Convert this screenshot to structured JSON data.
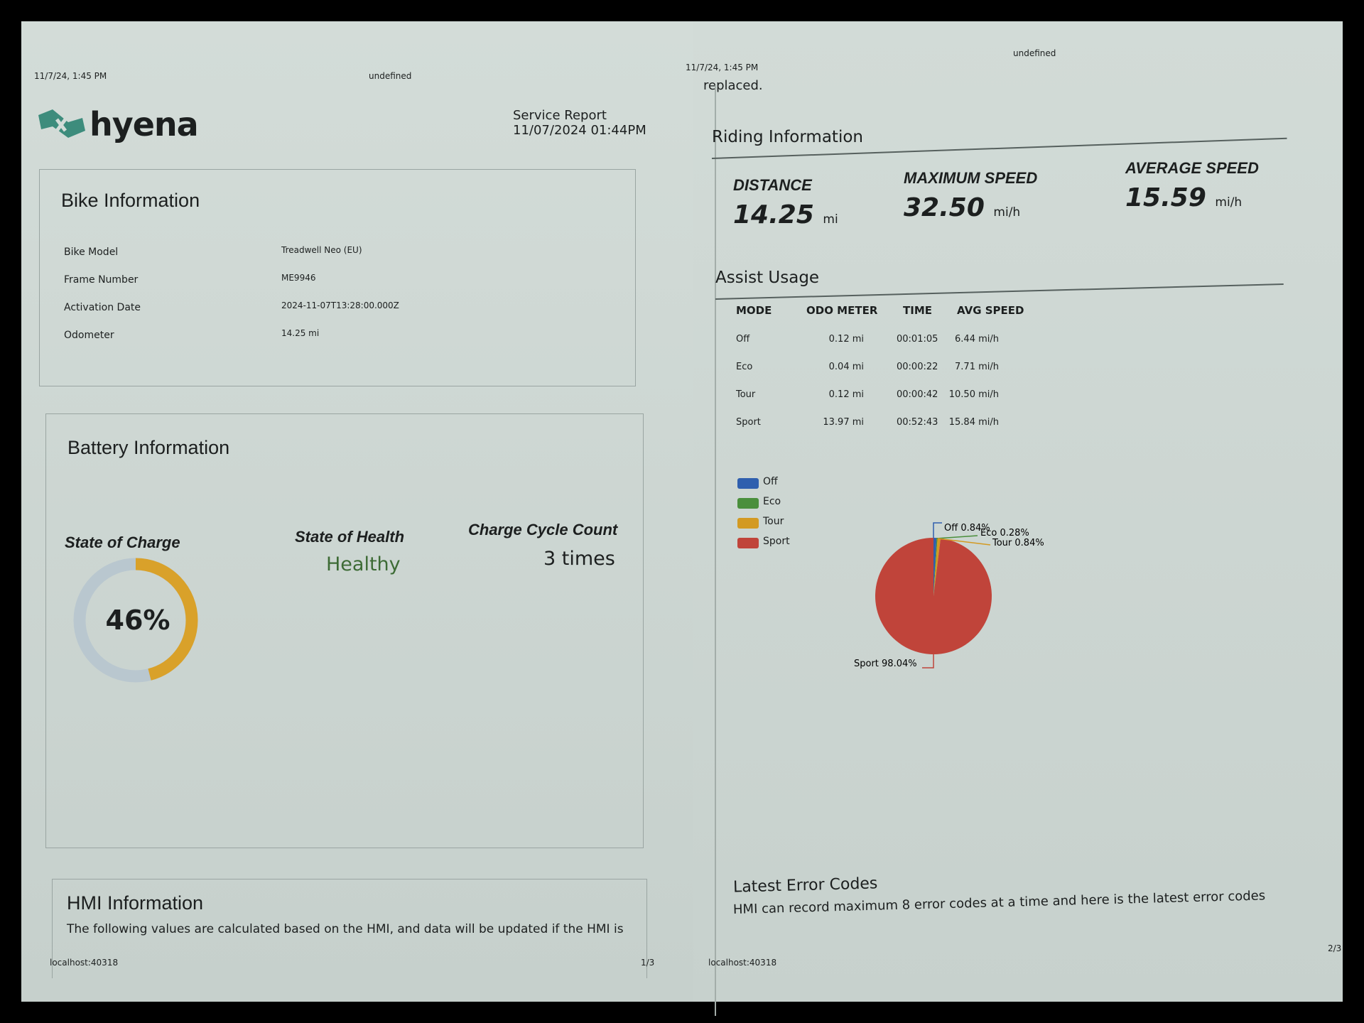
{
  "page1": {
    "header_date": "11/7/24, 1:45 PM",
    "header_title": "undefined",
    "logo_text": "hyena",
    "report_title": "Service Report",
    "report_datetime": "11/07/2024 01:44PM",
    "bike_info": {
      "title": "Bike Information",
      "rows": [
        {
          "label": "Bike Model",
          "value": "Treadwell Neo (EU)"
        },
        {
          "label": "Frame Number",
          "value": "ME9946"
        },
        {
          "label": "Activation Date",
          "value": "2024-11-07T13:28:00.000Z"
        },
        {
          "label": "Odometer",
          "value": "14.25 mi"
        }
      ]
    },
    "battery": {
      "title": "Battery Information",
      "soc_label": "State of Charge",
      "soc_value": "46%",
      "soc_fraction": 0.46,
      "soh_label": "State of Health",
      "soh_value": "Healthy",
      "cycle_label": "Charge Cycle Count",
      "cycle_value": "3 times",
      "colors": {
        "charge": "#d9a12a",
        "track": "#b9c7cf",
        "healthy": "#3d6b35"
      }
    },
    "hmi": {
      "title": "HMI Information",
      "description": "The following values are calculated based on the HMI, and data will be updated if the HMI is"
    },
    "footer_url": "localhost:40318",
    "page_number": "1/3"
  },
  "page2": {
    "header_date": "11/7/24, 1:45 PM",
    "header_title": "undefined",
    "continued_text": "replaced.",
    "riding": {
      "title": "Riding Information",
      "stats": [
        {
          "label": "DISTANCE",
          "value": "14.25",
          "unit": "mi"
        },
        {
          "label": "MAXIMUM SPEED",
          "value": "32.50",
          "unit": "mi/h"
        },
        {
          "label": "AVERAGE SPEED",
          "value": "15.59",
          "unit": "mi/h"
        }
      ]
    },
    "assist": {
      "title": "Assist Usage",
      "columns": [
        "MODE",
        "ODO METER",
        "TIME",
        "AVG SPEED"
      ],
      "rows": [
        [
          "Off",
          "0.12 mi",
          "00:01:05",
          "6.44 mi/h"
        ],
        [
          "Eco",
          "0.04 mi",
          "00:00:22",
          "7.71 mi/h"
        ],
        [
          "Tour",
          "0.12 mi",
          "00:00:42",
          "10.50 mi/h"
        ],
        [
          "Sport",
          "13.97 mi",
          "00:52:43",
          "15.84 mi/h"
        ]
      ]
    },
    "chart_data": {
      "type": "pie",
      "legend_position": "top-left",
      "categories": [
        "Off",
        "Eco",
        "Tour",
        "Sport"
      ],
      "values": [
        0.84,
        0.28,
        0.84,
        98.04
      ],
      "labels": [
        "Off 0.84%",
        "Eco 0.28%",
        "Tour 0.84%",
        "Sport 98.04%"
      ],
      "colors": [
        "#2f5fae",
        "#4a8f3c",
        "#d39a22",
        "#c0443a"
      ]
    },
    "errors": {
      "title": "Latest Error Codes",
      "description": "HMI can record maximum 8 error codes at a time and here is the latest error codes"
    },
    "footer_url": "localhost:40318",
    "page_number": "2/3"
  }
}
